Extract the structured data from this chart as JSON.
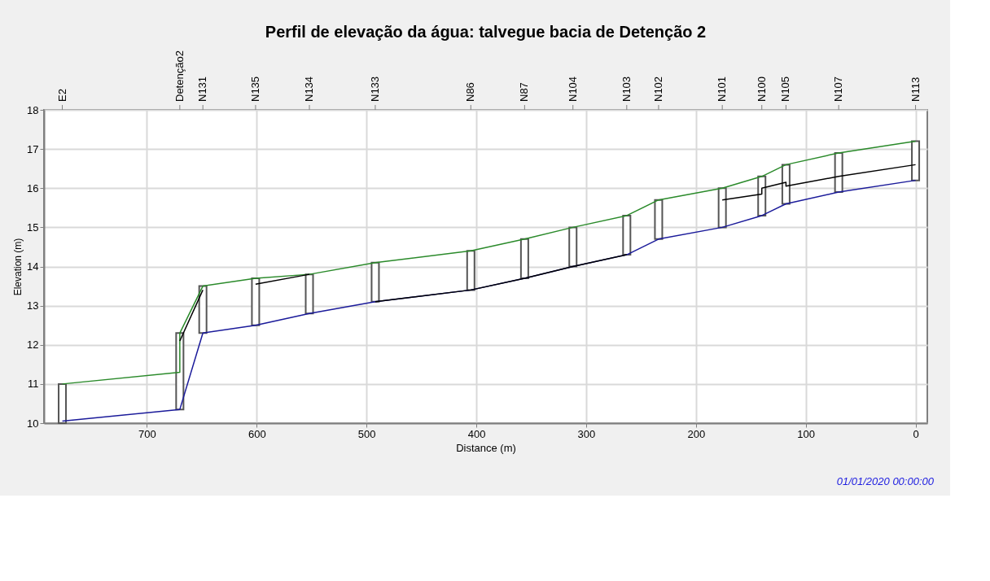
{
  "chart_data": {
    "type": "line",
    "title": "Perfil de elevação da água: talvegue bacia de Detenção 2",
    "xlabel": "Distance (m)",
    "ylabel": "Elevation (m)",
    "xlim": [
      790,
      -7
    ],
    "xticks": [
      700,
      600,
      500,
      400,
      300,
      200,
      100,
      0
    ],
    "ylim": [
      10,
      18
    ],
    "yticks": [
      10,
      11,
      12,
      13,
      14,
      15,
      16,
      17,
      18
    ],
    "grid": true,
    "marker": "none",
    "line_style": "solid",
    "annotations": [
      {
        "text": "E2",
        "x": 777
      },
      {
        "text": "Detenção2",
        "x": 670
      },
      {
        "text": "N131",
        "x": 649
      },
      {
        "text": "N135",
        "x": 601
      },
      {
        "text": "N134",
        "x": 552
      },
      {
        "text": "N133",
        "x": 492
      },
      {
        "text": "N86",
        "x": 405
      },
      {
        "text": "N87",
        "x": 356
      },
      {
        "text": "N104",
        "x": 312
      },
      {
        "text": "N103",
        "x": 263
      },
      {
        "text": "N102",
        "x": 234
      },
      {
        "text": "N101",
        "x": 176
      },
      {
        "text": "N100",
        "x": 140
      },
      {
        "text": "N105",
        "x": 118
      },
      {
        "text": "N107",
        "x": 70
      },
      {
        "text": "N113",
        "x": 0
      },
      "01/01/2020 00:00:00"
    ],
    "series": [
      {
        "type": "bar",
        "color": "#ffffff",
        "x": [
          777,
          670,
          649,
          601,
          552,
          492,
          405,
          356,
          312,
          263,
          234,
          176,
          140,
          118,
          70,
          0
        ],
        "base": [
          10.0,
          10.35,
          12.3,
          12.5,
          12.8,
          13.1,
          13.4,
          13.7,
          14.0,
          14.3,
          14.7,
          15.0,
          15.3,
          15.6,
          15.9,
          16.2
        ],
        "values": [
          1.0,
          1.95,
          1.2,
          1.2,
          1.0,
          1.0,
          1.0,
          1.0,
          1.0,
          1.0,
          1.0,
          1.0,
          1.0,
          1.0,
          1.0,
          1.0
        ]
      },
      {
        "color": "#2a8a2a",
        "x": [
          777,
          670,
          670,
          649,
          601,
          552,
          492,
          405,
          356,
          312,
          263,
          234,
          176,
          140,
          118,
          70,
          0
        ],
        "values": [
          11.0,
          11.3,
          12.3,
          13.5,
          13.7,
          13.8,
          14.1,
          14.4,
          14.7,
          15.0,
          15.3,
          15.7,
          16.0,
          16.3,
          16.6,
          16.9,
          17.2
        ]
      },
      {
        "color": "#1a1a9a",
        "x": [
          777,
          670,
          649,
          601,
          552,
          492,
          405,
          356,
          312,
          263,
          234,
          176,
          140,
          118,
          70,
          0
        ],
        "values": [
          10.05,
          10.35,
          12.3,
          12.5,
          12.8,
          13.1,
          13.4,
          13.7,
          14.0,
          14.3,
          14.7,
          15.0,
          15.3,
          15.6,
          15.9,
          16.2
        ]
      },
      {
        "color": "#000000",
        "x": [
          670,
          649
        ],
        "values": [
          12.1,
          13.4
        ]
      },
      {
        "color": "#000000",
        "x": [
          601,
          552
        ],
        "values": [
          13.55,
          13.8
        ]
      },
      {
        "color": "#000000",
        "x": [
          492,
          405,
          356,
          312,
          263
        ],
        "values": [
          13.1,
          13.4,
          13.7,
          14.0,
          14.3
        ]
      },
      {
        "color": "#000000",
        "x": [
          176,
          140,
          140,
          118,
          118,
          70,
          70,
          0
        ],
        "values": [
          15.7,
          15.85,
          16.0,
          16.15,
          16.05,
          16.3,
          16.3,
          16.6
        ]
      }
    ]
  }
}
